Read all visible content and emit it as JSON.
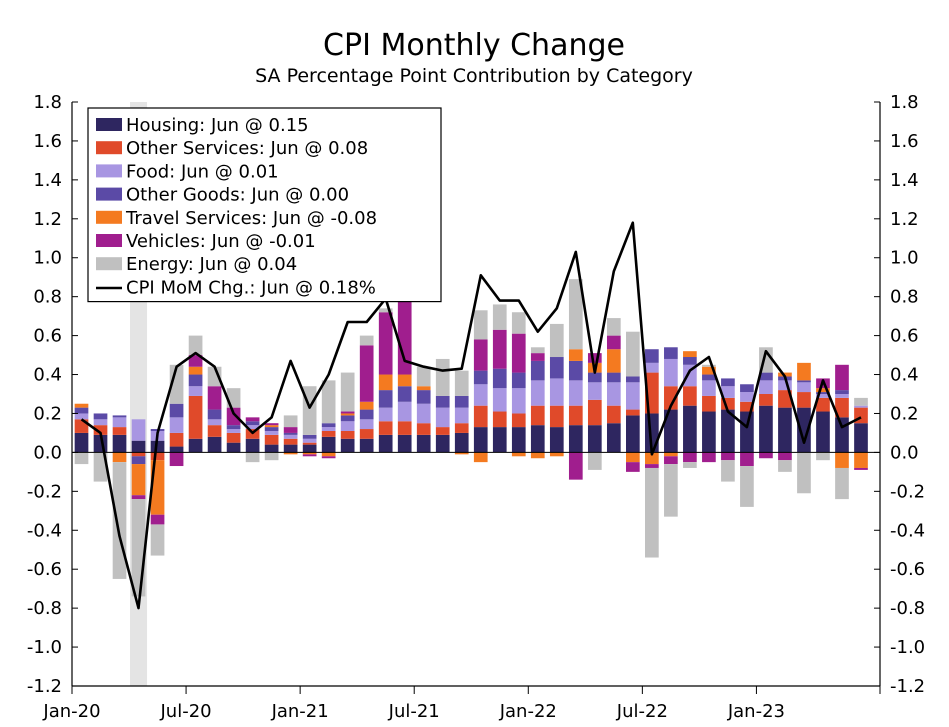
{
  "chart_data": {
    "type": "bar",
    "stacked": true,
    "title": "CPI Monthly Change",
    "subtitle": "SA Percentage Point Contribution by Category",
    "ylim": [
      -1.2,
      1.8
    ],
    "y_ticks": [
      "1.8",
      "1.6",
      "1.4",
      "1.2",
      "1.0",
      "0.8",
      "0.6",
      "0.4",
      "0.2",
      "0.0",
      "-0.2",
      "-0.4",
      "-0.6",
      "-0.8",
      "-1.0",
      "-1.2"
    ],
    "y_tick_values": [
      1.8,
      1.6,
      1.4,
      1.2,
      1.0,
      0.8,
      0.6,
      0.4,
      0.2,
      0.0,
      -0.2,
      -0.4,
      -0.6,
      -0.8,
      -1.0,
      -1.2
    ],
    "x_tick_labels": [
      {
        "label": "Jan-20",
        "index": 0
      },
      {
        "label": "Jul-20",
        "index": 6
      },
      {
        "label": "Jan-21",
        "index": 12
      },
      {
        "label": "Jul-21",
        "index": 18
      },
      {
        "label": "Jan-22",
        "index": 24
      },
      {
        "label": "Jul-22",
        "index": 30
      },
      {
        "label": "Jan-23",
        "index": 36
      }
    ],
    "recession_shade_index": 3,
    "legend_location": "top-left",
    "categories": [
      "Jan-20",
      "Feb-20",
      "Mar-20",
      "Apr-20",
      "May-20",
      "Jun-20",
      "Jul-20",
      "Aug-20",
      "Sep-20",
      "Oct-20",
      "Nov-20",
      "Dec-20",
      "Jan-21",
      "Feb-21",
      "Mar-21",
      "Apr-21",
      "May-21",
      "Jun-21",
      "Jul-21",
      "Aug-21",
      "Sep-21",
      "Oct-21",
      "Nov-21",
      "Dec-21",
      "Jan-22",
      "Feb-22",
      "Mar-22",
      "Apr-22",
      "May-22",
      "Jun-22",
      "Jul-22",
      "Aug-22",
      "Sep-22",
      "Oct-22",
      "Nov-22",
      "Dec-22",
      "Jan-23",
      "Feb-23",
      "Mar-23",
      "Apr-23",
      "May-23",
      "Jun-23"
    ],
    "series": [
      {
        "name": "Housing",
        "legend": "Housing: Jun @ 0.15",
        "color": "#2e2660",
        "values": [
          0.1,
          0.09,
          0.09,
          0.06,
          0.06,
          0.03,
          0.07,
          0.08,
          0.05,
          0.07,
          0.04,
          0.04,
          0.04,
          0.08,
          0.07,
          0.07,
          0.09,
          0.09,
          0.09,
          0.09,
          0.1,
          0.13,
          0.13,
          0.13,
          0.14,
          0.13,
          0.14,
          0.14,
          0.15,
          0.19,
          0.2,
          0.22,
          0.24,
          0.21,
          0.22,
          0.21,
          0.24,
          0.23,
          0.23,
          0.21,
          0.18,
          0.15
        ]
      },
      {
        "name": "Other Services",
        "legend": "Other Services: Jun @ 0.08",
        "color": "#e04a2a",
        "values": [
          0.07,
          0.05,
          0.04,
          -0.02,
          -0.04,
          0.07,
          0.22,
          0.06,
          0.05,
          0.05,
          0.05,
          0.03,
          0.01,
          0.03,
          0.04,
          0.05,
          0.07,
          0.07,
          0.06,
          0.04,
          0.05,
          0.11,
          0.08,
          0.07,
          0.1,
          0.11,
          0.1,
          0.13,
          0.09,
          0.03,
          0.21,
          0.12,
          0.1,
          0.08,
          0.06,
          0.05,
          0.06,
          0.09,
          0.08,
          0.07,
          0.1,
          0.08
        ]
      },
      {
        "name": "Food",
        "legend": "Food: Jun @ 0.01",
        "color": "#a896e2",
        "values": [
          0.03,
          0.03,
          0.05,
          0.11,
          0.05,
          0.08,
          0.05,
          0.03,
          0.02,
          0.02,
          0.02,
          0.02,
          0.02,
          0.02,
          0.05,
          0.05,
          0.07,
          0.1,
          0.1,
          0.1,
          0.08,
          0.11,
          0.12,
          0.13,
          0.13,
          0.14,
          0.13,
          0.09,
          0.12,
          0.14,
          0.05,
          0.14,
          0.11,
          0.08,
          0.06,
          0.05,
          0.07,
          0.05,
          0.05,
          0.02,
          0.02,
          0.01
        ]
      },
      {
        "name": "Other Goods",
        "legend": "Other Goods: Jun @ 0.00",
        "color": "#5b4aa6",
        "values": [
          0.03,
          0.03,
          0.01,
          -0.04,
          0.01,
          0.07,
          0.06,
          0.05,
          0.02,
          0.02,
          0.02,
          0.01,
          0.02,
          0.02,
          0.03,
          0.05,
          0.09,
          0.08,
          0.07,
          0.06,
          0.06,
          0.07,
          0.1,
          0.08,
          0.1,
          0.11,
          0.1,
          0.05,
          0.05,
          0.03,
          0.07,
          0.06,
          0.04,
          0.03,
          0.04,
          0.04,
          0.04,
          0.02,
          0.01,
          0.01,
          0.02,
          0.0
        ]
      },
      {
        "name": "Travel Services",
        "legend": "Travel Services: Jun @ -0.08",
        "color": "#f47a20",
        "values": [
          0.02,
          0.0,
          -0.05,
          -0.16,
          -0.28,
          0.0,
          0.04,
          0.0,
          0.0,
          0.0,
          0.01,
          -0.01,
          -0.01,
          -0.02,
          0.01,
          0.04,
          0.08,
          0.06,
          0.02,
          0.0,
          -0.01,
          -0.05,
          0.0,
          -0.02,
          -0.03,
          -0.02,
          0.06,
          0.05,
          0.12,
          -0.05,
          -0.06,
          -0.02,
          0.03,
          0.04,
          0.0,
          0.0,
          0.0,
          0.02,
          0.09,
          0.02,
          -0.08,
          -0.08
        ]
      },
      {
        "name": "Vehicles",
        "legend": "Vehicles: Jun @ -0.01",
        "color": "#a01e8e",
        "values": [
          0.0,
          0.0,
          0.0,
          -0.02,
          -0.05,
          -0.07,
          0.06,
          0.12,
          0.09,
          0.02,
          0.01,
          0.03,
          -0.01,
          -0.01,
          0.01,
          0.29,
          0.32,
          0.38,
          0.0,
          0.0,
          0.0,
          0.16,
          0.2,
          0.2,
          0.04,
          0.0,
          -0.14,
          0.05,
          0.07,
          -0.05,
          -0.02,
          -0.04,
          -0.05,
          -0.05,
          -0.04,
          -0.07,
          -0.03,
          -0.04,
          0.0,
          0.05,
          0.13,
          -0.01
        ]
      },
      {
        "name": "Energy",
        "legend": "Energy: Jun @ 0.04",
        "color": "#c0c0c0",
        "values": [
          -0.06,
          -0.15,
          -0.6,
          -0.5,
          -0.16,
          0.2,
          0.1,
          0.1,
          0.1,
          -0.05,
          -0.04,
          0.06,
          0.25,
          0.22,
          0.2,
          0.05,
          0.02,
          0.14,
          0.1,
          0.19,
          0.13,
          0.15,
          0.13,
          0.11,
          0.03,
          0.17,
          0.36,
          -0.09,
          0.09,
          0.23,
          -0.46,
          -0.27,
          -0.03,
          0.01,
          -0.11,
          -0.21,
          0.13,
          -0.06,
          -0.21,
          -0.04,
          -0.16,
          0.04
        ]
      },
      {
        "name": "CPI MoM Chg.",
        "legend": "CPI MoM Chg.: Jun @ 0.18%",
        "color": "#000000",
        "kind": "line",
        "values": [
          0.17,
          0.1,
          -0.43,
          -0.8,
          0.1,
          0.44,
          0.51,
          0.44,
          0.2,
          0.1,
          0.18,
          0.47,
          0.23,
          0.4,
          0.67,
          0.67,
          0.79,
          0.47,
          0.44,
          0.42,
          0.43,
          0.91,
          0.78,
          0.78,
          0.62,
          0.74,
          1.03,
          0.41,
          0.93,
          1.18,
          -0.01,
          0.24,
          0.42,
          0.49,
          0.21,
          0.13,
          0.52,
          0.39,
          0.05,
          0.37,
          0.13,
          0.18
        ]
      }
    ]
  }
}
